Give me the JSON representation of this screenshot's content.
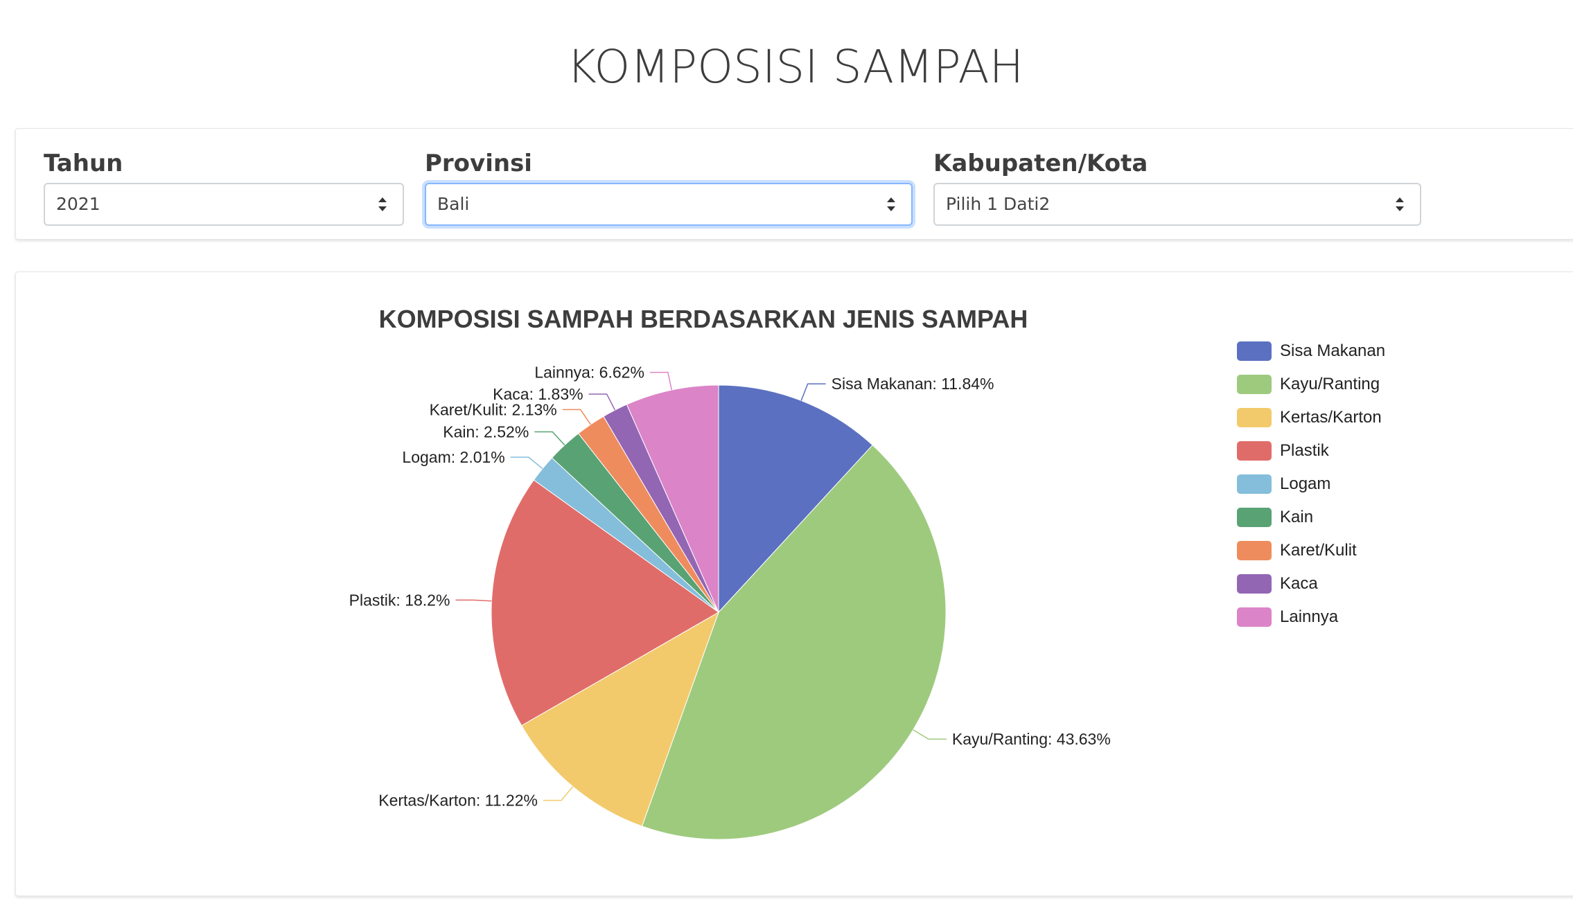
{
  "page": {
    "title": "KOMPOSISI SAMPAH"
  },
  "filters": {
    "tahun": {
      "label": "Tahun",
      "value": "2021"
    },
    "provinsi": {
      "label": "Provinsi",
      "value": "Bali"
    },
    "kabupaten": {
      "label": "Kabupaten/Kota",
      "value": "Pilih 1 Dati2"
    }
  },
  "chart_data": {
    "type": "pie",
    "title": "KOMPOSISI SAMPAH BERDASARKAN JENIS SAMPAH",
    "legend_position": "right",
    "slices": [
      {
        "name": "Sisa Makanan",
        "value": 11.84,
        "label": "Sisa Makanan: 11.84%",
        "color": "#5b70c0"
      },
      {
        "name": "Kayu/Ranting",
        "value": 43.63,
        "label": "Kayu/Ranting: 43.63%",
        "color": "#9eca7e"
      },
      {
        "name": "Kertas/Karton",
        "value": 11.22,
        "label": "Kertas/Karton: 11.22%",
        "color": "#f2ca6b"
      },
      {
        "name": "Plastik",
        "value": 18.2,
        "label": "Plastik: 18.2%",
        "color": "#e06c69"
      },
      {
        "name": "Logam",
        "value": 2.01,
        "label": "Logam: 2.01%",
        "color": "#84bedb"
      },
      {
        "name": "Kain",
        "value": 2.52,
        "label": "Kain: 2.52%",
        "color": "#59a274"
      },
      {
        "name": "Karet/Kulit",
        "value": 2.13,
        "label": "Karet/Kulit: 2.13%",
        "color": "#ef8c5e"
      },
      {
        "name": "Kaca",
        "value": 1.83,
        "label": "Kaca: 1.83%",
        "color": "#9366b4"
      },
      {
        "name": "Lainnya",
        "value": 6.62,
        "label": "Lainnya: 6.62%",
        "color": "#dc84c8"
      }
    ]
  }
}
